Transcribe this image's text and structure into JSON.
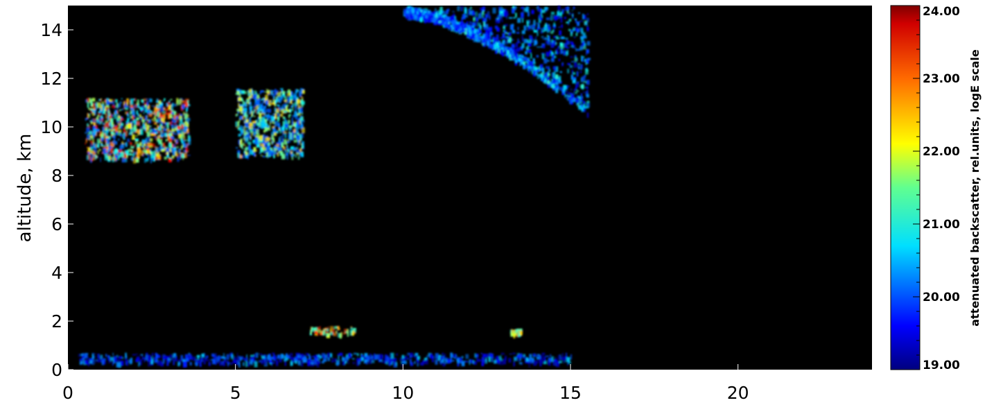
{
  "chart_data": {
    "type": "heatmap",
    "title": "",
    "xlabel": "",
    "ylabel": "altitude, km",
    "xlim": [
      0,
      24
    ],
    "ylim": [
      0,
      15
    ],
    "x_ticks": [
      0,
      5,
      10,
      15,
      20
    ],
    "y_ticks": [
      0,
      2,
      4,
      6,
      8,
      10,
      12,
      14
    ],
    "data_extent_x": [
      0,
      15.5
    ],
    "background_color": "#000000",
    "colorbar": {
      "label": "attenuated backscatter, rel.units, logE scale",
      "range": [
        19,
        24
      ],
      "ticks": [
        "19.00",
        "20.00",
        "21.00",
        "22.00",
        "23.00",
        "24.00"
      ],
      "colormap": "jet"
    },
    "features": [
      {
        "name": "cirrus-upper-layer",
        "x_range": [
          10,
          15.5
        ],
        "alt_range": [
          10.5,
          15
        ],
        "intensity_range": [
          19.5,
          21.2
        ]
      },
      {
        "name": "cirrus-layer-1",
        "x_range": [
          0.5,
          3.6
        ],
        "alt_range": [
          8.7,
          11.2
        ],
        "intensity_range": [
          20,
          23.8
        ]
      },
      {
        "name": "cirrus-layer-2",
        "x_range": [
          5.0,
          7.0
        ],
        "alt_range": [
          8.8,
          11.6
        ],
        "intensity_range": [
          20,
          22.5
        ]
      },
      {
        "name": "low-cloud-1",
        "x_range": [
          7.2,
          8.6
        ],
        "alt_range": [
          1.5,
          1.8
        ],
        "intensity_range": [
          21,
          23.5
        ]
      },
      {
        "name": "low-cloud-2",
        "x_range": [
          13.2,
          13.5
        ],
        "alt_range": [
          1.5,
          1.7
        ],
        "intensity_range": [
          21,
          23
        ]
      },
      {
        "name": "boundary-layer",
        "x_range": [
          0.3,
          15
        ],
        "alt_range": [
          0.3,
          0.7
        ],
        "intensity_range": [
          19.2,
          20.8
        ]
      }
    ]
  }
}
